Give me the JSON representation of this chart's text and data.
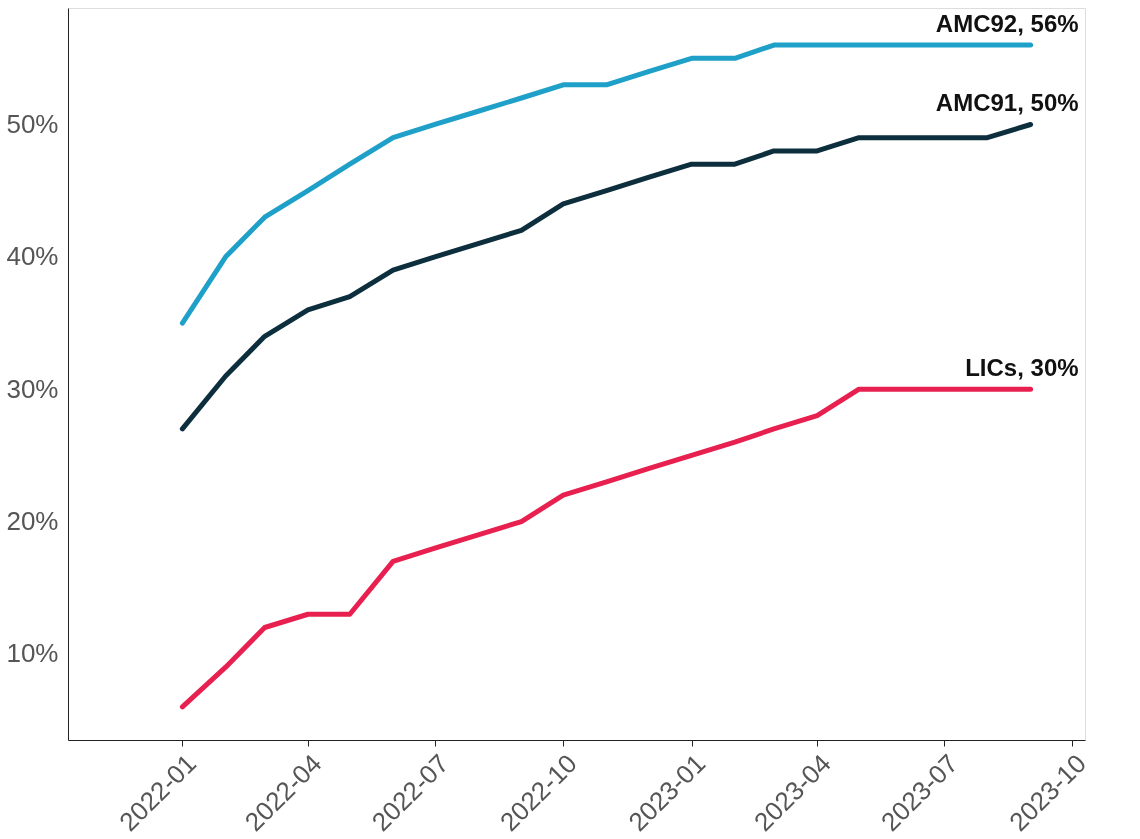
{
  "chart_data": {
    "type": "line",
    "x": [
      "2022-01",
      "2022-02",
      "2022-03",
      "2022-04",
      "2022-05",
      "2022-06",
      "2022-07",
      "2022-08",
      "2022-09",
      "2022-10",
      "2022-11",
      "2022-12",
      "2023-01",
      "2023-02",
      "2023-03",
      "2023-04",
      "2023-05",
      "2023-06",
      "2023-07",
      "2023-08",
      "2023-09"
    ],
    "series": [
      {
        "color": "#1fa0c9",
        "values": [
          35,
          40,
          43,
          45,
          47,
          49,
          50,
          51,
          52,
          53,
          53,
          54,
          55,
          55,
          56,
          56,
          56,
          56,
          56,
          56,
          56
        ]
      },
      {
        "color": "#0d2f3d",
        "values": [
          27,
          31,
          34,
          36,
          37,
          39,
          40,
          41,
          42,
          44,
          45,
          46,
          47,
          47,
          48,
          48,
          49,
          49,
          49,
          49,
          50
        ]
      },
      {
        "color": "#e8204f",
        "values": [
          6,
          9,
          12,
          13,
          13,
          17,
          18,
          19,
          20,
          22,
          23,
          24,
          25,
          26,
          27,
          28,
          30,
          30,
          30,
          30,
          30
        ]
      }
    ],
    "annotations": [
      {
        "text": "AMC92, 56%",
        "x": "2023-09",
        "y": 56
      },
      {
        "text": "AMC91, 50%",
        "x": "2023-09",
        "y": 50
      },
      {
        "text": "LICs, 30%",
        "x": "2023-09",
        "y": 30
      }
    ],
    "xlim": [
      "2021-10-11",
      "2023-10-10"
    ],
    "xticks": [
      "2022-01",
      "2022-04",
      "2022-07",
      "2022-10",
      "2023-01",
      "2023-04",
      "2023-07",
      "2023-10"
    ],
    "ylim": [
      3.5,
      58.8
    ],
    "yticks": [
      {
        "value": 10,
        "label": "10%"
      },
      {
        "value": 20,
        "label": "20%"
      },
      {
        "value": 30,
        "label": "30%"
      },
      {
        "value": 40,
        "label": "40%"
      },
      {
        "value": 50,
        "label": "50%"
      }
    ],
    "grid": false,
    "marker": "none",
    "line_style": "solid"
  }
}
